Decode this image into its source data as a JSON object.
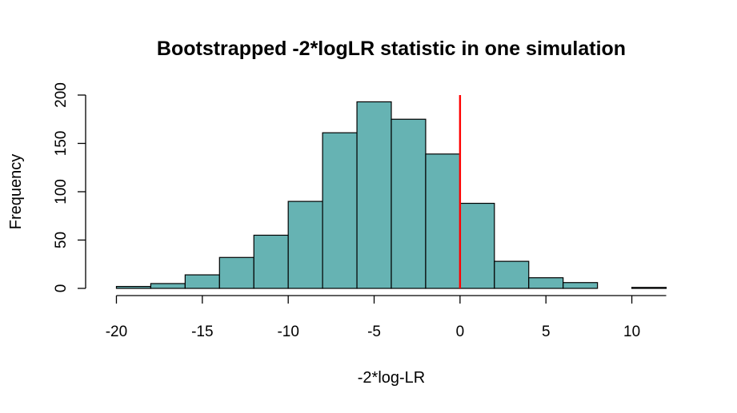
{
  "chart_data": {
    "type": "bar",
    "title": "Bootstrapped -2*logLR statistic in one simulation",
    "xlabel": "-2*log-LR",
    "ylabel": "Frequency",
    "bins": [
      {
        "x0": -20,
        "x1": -18,
        "count": 2
      },
      {
        "x0": -18,
        "x1": -16,
        "count": 5
      },
      {
        "x0": -16,
        "x1": -14,
        "count": 14
      },
      {
        "x0": -14,
        "x1": -12,
        "count": 32
      },
      {
        "x0": -12,
        "x1": -10,
        "count": 55
      },
      {
        "x0": -10,
        "x1": -8,
        "count": 90
      },
      {
        "x0": -8,
        "x1": -6,
        "count": 161
      },
      {
        "x0": -6,
        "x1": -4,
        "count": 193
      },
      {
        "x0": -4,
        "x1": -2,
        "count": 175
      },
      {
        "x0": -2,
        "x1": 0,
        "count": 139
      },
      {
        "x0": 0,
        "x1": 2,
        "count": 88
      },
      {
        "x0": 2,
        "x1": 4,
        "count": 28
      },
      {
        "x0": 4,
        "x1": 6,
        "count": 11
      },
      {
        "x0": 6,
        "x1": 8,
        "count": 6
      },
      {
        "x0": 8,
        "x1": 10,
        "count": 0
      },
      {
        "x0": 10,
        "x1": 12,
        "count": 1
      }
    ],
    "xticks": [
      -20,
      -15,
      -10,
      -5,
      0,
      5,
      10
    ],
    "yticks": [
      0,
      50,
      100,
      150,
      200
    ],
    "xlim": [
      -21.28,
      13.28
    ],
    "ylim": [
      0,
      200
    ],
    "reference_line": {
      "x": 0,
      "color": "#ff0000"
    },
    "bar_color": "#66b3b3",
    "grid": false
  }
}
